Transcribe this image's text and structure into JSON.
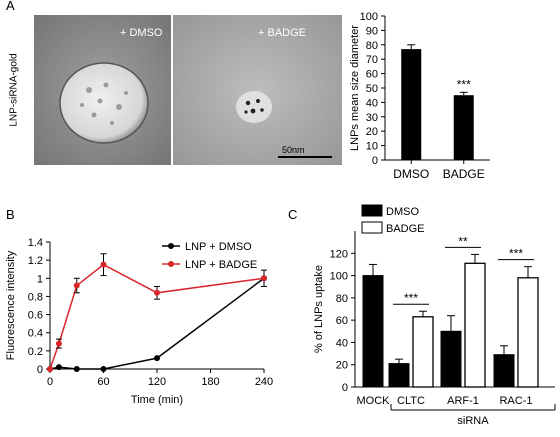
{
  "panels": {
    "a": "A",
    "b": "B",
    "c": "C"
  },
  "em": {
    "row_label": "LNP-siRNA-gold",
    "left_label": "+ DMSO",
    "right_label": "+ BADGE",
    "scale_bar": "50nm"
  },
  "chart_data": [
    {
      "type": "bar",
      "panel": "A",
      "ylabel": "LNPs mean size diameter",
      "xlabel": "",
      "categories": [
        "DMSO",
        "BADGE"
      ],
      "values": [
        77,
        45
      ],
      "errors": [
        3,
        2
      ],
      "ylim": [
        0,
        100
      ],
      "yticks": [
        "0",
        "10",
        "20",
        "30",
        "40",
        "50",
        "60",
        "70",
        "80",
        "90",
        "100"
      ],
      "annotations": [
        {
          "category": "BADGE",
          "text": "***"
        }
      ],
      "color": "#000000"
    },
    {
      "type": "line",
      "panel": "B",
      "xlabel": "Time (min)",
      "ylabel": "Fluorescence intensity",
      "xlim": [
        0,
        240
      ],
      "ylim": [
        0,
        1.4
      ],
      "xticks": [
        "0",
        "60",
        "120",
        "180",
        "240"
      ],
      "yticks": [
        "0",
        "0.2",
        "0.4",
        "0.6",
        "0.8",
        "1",
        "1.2",
        "1.4"
      ],
      "legend": "top-right",
      "series": [
        {
          "name": "LNP + DMSO",
          "color": "#000000",
          "x": [
            0,
            10,
            30,
            60,
            120,
            240
          ],
          "y": [
            0,
            0.02,
            0.0,
            0.0,
            0.12,
            1.0
          ],
          "err": [
            0,
            0,
            0,
            0,
            0,
            0
          ]
        },
        {
          "name": "LNP + BADGE",
          "color": "#d9262b",
          "x": [
            0,
            10,
            30,
            60,
            120,
            240
          ],
          "y": [
            0,
            0.28,
            0.92,
            1.15,
            0.84,
            1.0
          ],
          "err": [
            0,
            0.05,
            0.08,
            0.12,
            0.07,
            0.09
          ]
        }
      ]
    },
    {
      "type": "bar",
      "panel": "C",
      "ylabel": "% of LNPs uptake",
      "xlabel": "siRNA",
      "ylim": [
        0,
        140
      ],
      "yticks": [
        "0",
        "20",
        "40",
        "60",
        "80",
        "100",
        "120"
      ],
      "legend": "top-left",
      "categories": [
        "MOCK",
        "CLTC",
        "ARF-1",
        "RAC-1"
      ],
      "series": [
        {
          "name": "DMSO",
          "fill": "#000000",
          "values": [
            100,
            21,
            50,
            29
          ],
          "errors": [
            10,
            4,
            14,
            8
          ]
        },
        {
          "name": "BADGE",
          "fill": "#ffffff",
          "values": [
            null,
            63,
            111,
            98
          ],
          "errors": [
            null,
            5,
            8,
            10
          ]
        }
      ],
      "significance": [
        {
          "category": "CLTC",
          "text": "***"
        },
        {
          "category": "ARF-1",
          "text": "**"
        },
        {
          "category": "RAC-1",
          "text": "***"
        }
      ]
    }
  ]
}
